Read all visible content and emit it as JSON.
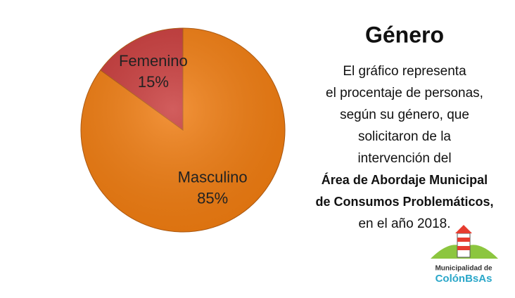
{
  "chart_data": {
    "type": "pie",
    "title": "Género",
    "categories": [
      "Masculino",
      "Femenino"
    ],
    "values": [
      85,
      15
    ],
    "value_labels": [
      "85%",
      "15%"
    ],
    "colors": [
      "#f07c10",
      "#c83a3a"
    ],
    "description": [
      {
        "text": "El gráfico representa",
        "bold": false
      },
      {
        "text": "el procentaje de personas,",
        "bold": false
      },
      {
        "text": "según su género, que",
        "bold": false
      },
      {
        "text": "solicitaron de la",
        "bold": false
      },
      {
        "text": "intervención del",
        "bold": false
      },
      {
        "text": "Área de Abordaje Municipal",
        "bold": true
      },
      {
        "text": "de Consumos Problemáticos,",
        "bold": true
      },
      {
        "text": "en el año 2018.",
        "bold": false
      }
    ]
  },
  "logo": {
    "line1": "Municipalidad de",
    "line2": "ColónBsAs"
  }
}
